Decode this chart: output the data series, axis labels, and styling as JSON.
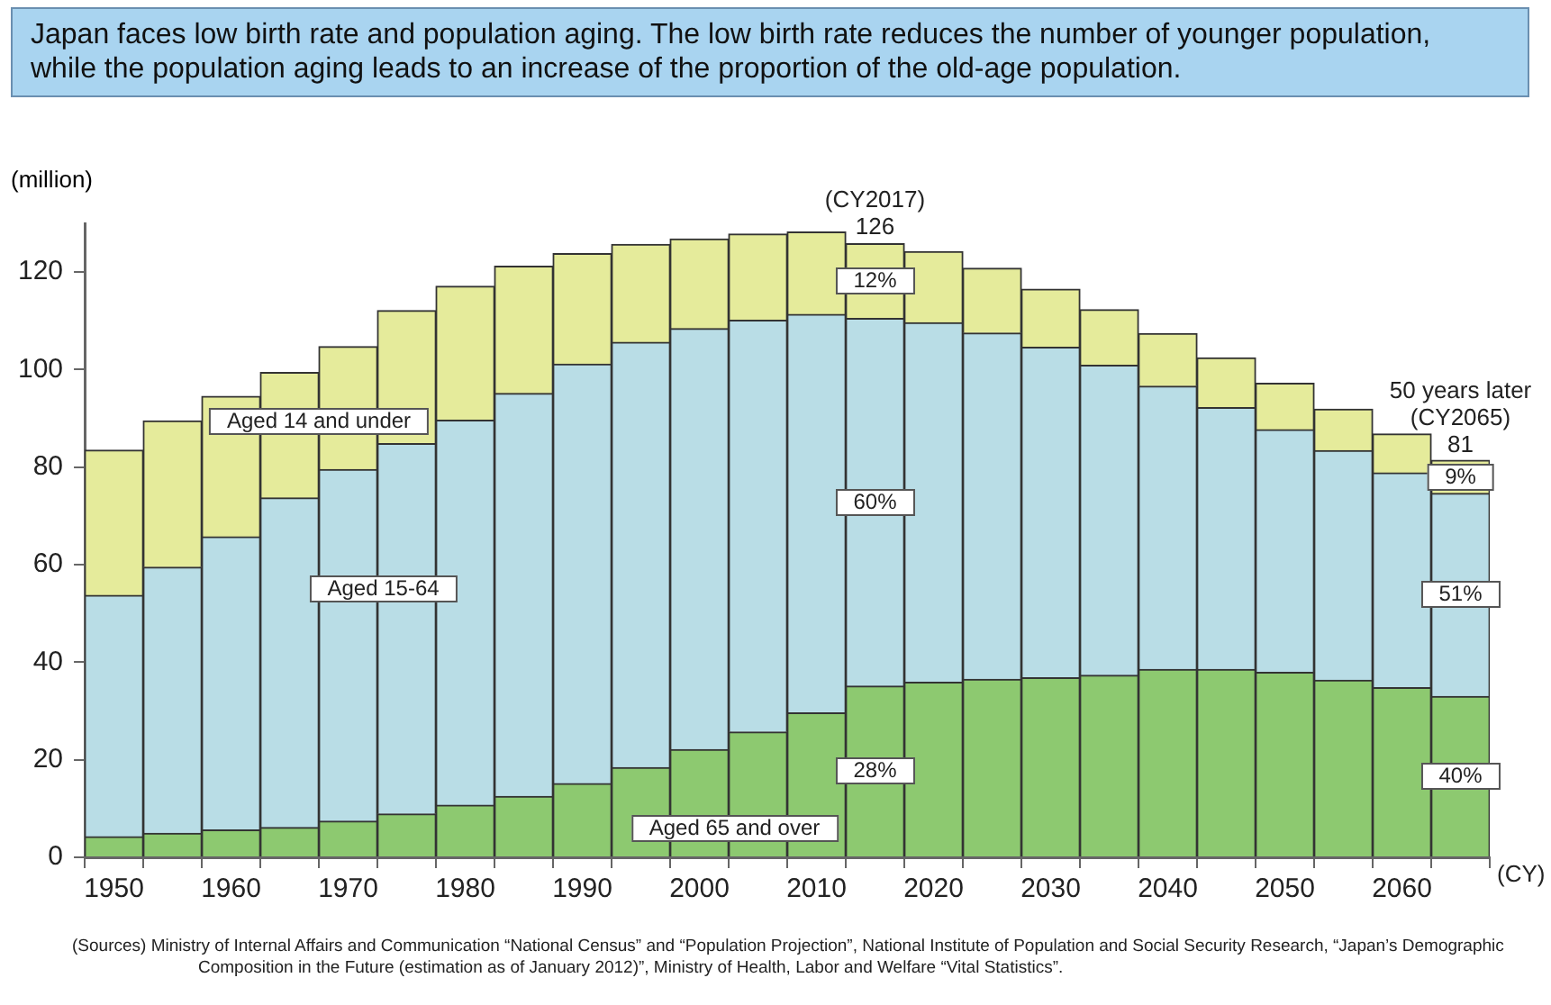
{
  "chart_data": {
    "type": "bar",
    "stacked": true,
    "title": "Japan faces low birth rate and population aging. The low birth rate reduces the number of younger population, while the population aging leads to an increase of the proportion of the old-age population.",
    "ylabel": "(million)",
    "xlabel": "(CY)",
    "categories": [
      "1950",
      null,
      "1960",
      null,
      "1970",
      null,
      "1980",
      null,
      "1990",
      null,
      "2000",
      null,
      "2010",
      null,
      "2020",
      null,
      "2030",
      null,
      "2040",
      null,
      "2050",
      null,
      "2060",
      null
    ],
    "series": [
      {
        "name": "Aged 65 and over",
        "color": "#8dc970",
        "values": [
          4.2,
          4.9,
          5.6,
          6.1,
          7.4,
          8.9,
          10.7,
          12.5,
          15.1,
          18.4,
          22.1,
          25.7,
          29.6,
          35.1,
          35.9,
          36.5,
          36.8,
          37.3,
          38.5,
          38.5,
          37.9,
          36.3,
          34.8,
          33.0
        ]
      },
      {
        "name": "Aged 15-64",
        "color": "#b9dde6",
        "values": [
          49.5,
          54.6,
          60.1,
          67.6,
          72.1,
          75.9,
          78.9,
          82.6,
          86.0,
          87.2,
          86.3,
          84.4,
          81.7,
          75.4,
          73.7,
          71.0,
          67.8,
          63.6,
          58.1,
          53.7,
          49.8,
          47.1,
          44.0,
          41.6
        ]
      },
      {
        "name": "Aged 14 and under",
        "color": "#e5eb9b",
        "values": [
          29.8,
          30.0,
          28.8,
          25.7,
          25.2,
          27.3,
          27.5,
          26.1,
          22.7,
          20.1,
          18.4,
          17.7,
          16.9,
          15.3,
          14.6,
          13.3,
          11.9,
          11.4,
          10.8,
          10.2,
          9.5,
          8.5,
          8.0,
          6.8
        ]
      }
    ],
    "totals": [
      null,
      null,
      null,
      null,
      null,
      null,
      null,
      null,
      null,
      null,
      null,
      null,
      null,
      "126",
      null,
      null,
      null,
      null,
      null,
      null,
      null,
      null,
      null,
      "81"
    ],
    "ylim": [
      0,
      130
    ],
    "yticks": [
      0,
      20,
      40,
      60,
      80,
      100,
      120
    ],
    "grid": false,
    "legend": false,
    "annotations": [
      "(CY2017)",
      "12%",
      "60%",
      "28%",
      "50 years later\n(CY2065)",
      "9%",
      "51%",
      "40%",
      "(Sources) Ministry of Internal Affairs and Communication “National Census” and “Population Projection”, National Institute of Population and Social Security Research, “Japan’s  Demographic Composition in the Future (estimation as of January 2012)”, Ministry of Health, Labor and Welfare “Vital Statistics”."
    ]
  }
}
